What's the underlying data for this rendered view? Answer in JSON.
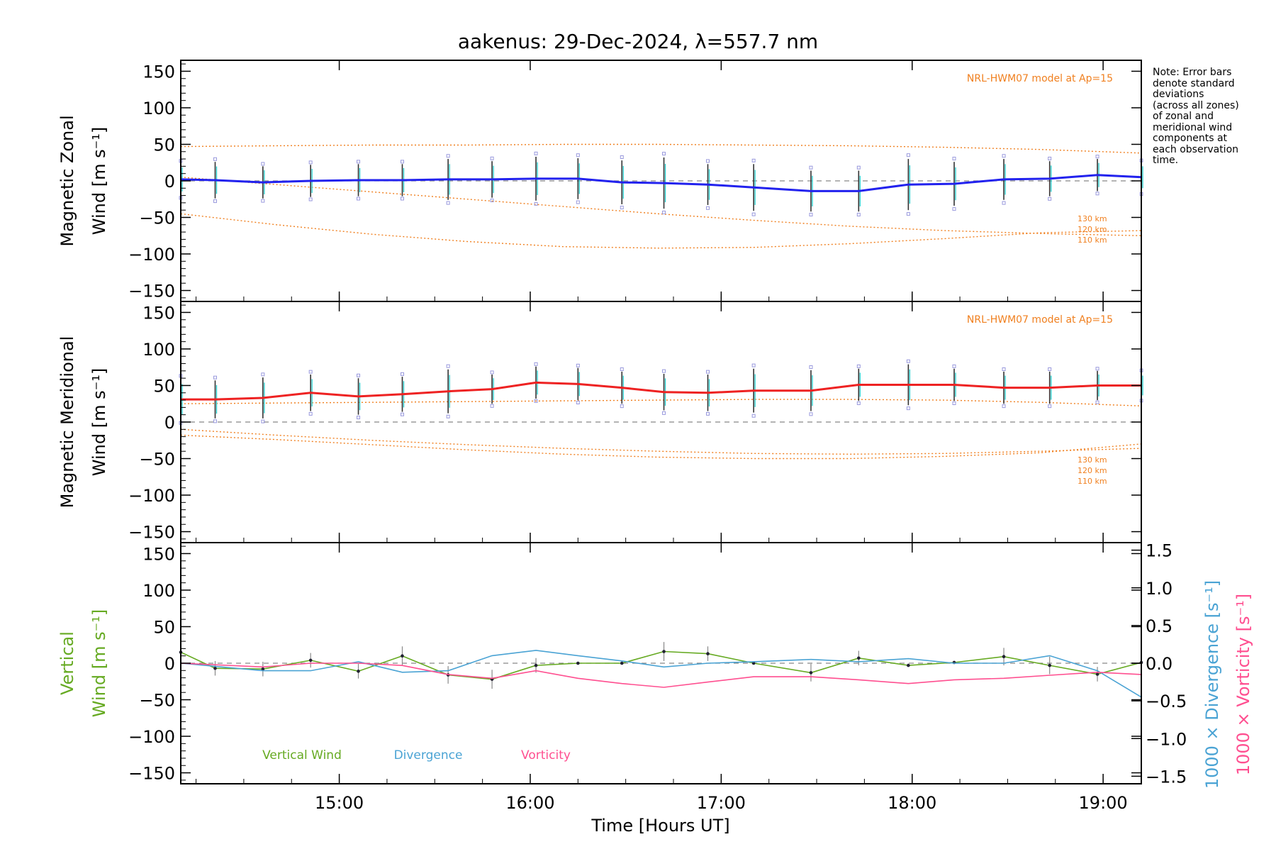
{
  "title": "aakenus: 29-Dec-2024, λ=557.7 nm",
  "note_lines": [
    "Note: Error bars",
    "denote standard",
    "deviations",
    "(across all zones)",
    "of zonal and",
    "meridional wind",
    "components at",
    "each observation",
    "time."
  ],
  "colors": {
    "zonal": "#2222ee",
    "meridional": "#ee2222",
    "model": "#f08020",
    "vertical": "#66aa22",
    "divergence": "#4aa3d4",
    "vorticity": "#ff4f90",
    "zone_markers": "#9999dd"
  },
  "chart_data": [
    {
      "type": "line",
      "panel": "zonal",
      "ylabel_line1": "Magnetic Zonal",
      "ylabel_line2": "Wind [m s⁻¹]",
      "ylim": [
        -165,
        165
      ],
      "yticks": [
        -150,
        -100,
        -50,
        0,
        50,
        100,
        150
      ],
      "ytick_labels": [
        "−150",
        "−100",
        "−50",
        "0",
        "50",
        "100",
        "150"
      ],
      "model_label": "NRL-HWM07 model at Ap=15",
      "model_altitude_labels": [
        "130 km",
        "120 km",
        "110 km"
      ],
      "series": [
        {
          "name": "Magnetic Zonal Wind",
          "x": [
            14.17,
            14.35,
            14.6,
            14.85,
            15.1,
            15.33,
            15.57,
            15.8,
            16.03,
            16.25,
            16.48,
            16.7,
            16.93,
            17.17,
            17.47,
            17.72,
            17.98,
            18.22,
            18.48,
            18.72,
            18.97,
            19.2
          ],
          "y": [
            2,
            1,
            -2,
            0,
            1,
            1,
            2,
            2,
            3,
            3,
            -2,
            -3,
            -5,
            -9,
            -14,
            -14,
            -5,
            -4,
            2,
            3,
            8,
            5
          ],
          "err": [
            22,
            25,
            22,
            22,
            22,
            22,
            28,
            25,
            30,
            28,
            30,
            35,
            28,
            32,
            28,
            28,
            35,
            30,
            28,
            24,
            22,
            20
          ]
        }
      ],
      "model_curves": [
        {
          "name": "130 km",
          "x": [
            14.17,
            14.67,
            15.17,
            15.67,
            16.17,
            16.67,
            17.17,
            17.67,
            18.17,
            18.67,
            19.2
          ],
          "y": [
            47,
            48,
            49,
            49,
            50,
            50,
            49,
            48,
            46,
            43,
            38
          ]
        },
        {
          "name": "120 km",
          "x": [
            14.17,
            14.67,
            15.17,
            15.67,
            16.17,
            16.67,
            17.17,
            17.67,
            18.17,
            18.67,
            19.2
          ],
          "y": [
            5,
            -5,
            -15,
            -25,
            -35,
            -45,
            -54,
            -62,
            -68,
            -72,
            -75
          ]
        },
        {
          "name": "110 km",
          "x": [
            14.17,
            14.67,
            15.17,
            15.67,
            16.17,
            16.67,
            17.17,
            17.67,
            18.17,
            18.67,
            19.2
          ],
          "y": [
            -45,
            -60,
            -73,
            -83,
            -90,
            -92,
            -91,
            -86,
            -79,
            -71,
            -68
          ]
        }
      ]
    },
    {
      "type": "line",
      "panel": "meridional",
      "ylabel_line1": "Magnetic Meridional",
      "ylabel_line2": "Wind [m s⁻¹]",
      "ylim": [
        -165,
        165
      ],
      "yticks": [
        -150,
        -100,
        -50,
        0,
        50,
        100,
        150
      ],
      "ytick_labels": [
        "−150",
        "−100",
        "−50",
        "0",
        "50",
        "100",
        "150"
      ],
      "model_label": "NRL-HWM07 model at Ap=15",
      "model_altitude_labels": [
        "130 km",
        "120 km",
        "110 km"
      ],
      "series": [
        {
          "name": "Magnetic Meridional Wind",
          "x": [
            14.17,
            14.35,
            14.6,
            14.85,
            15.1,
            15.33,
            15.57,
            15.8,
            16.03,
            16.25,
            16.48,
            16.7,
            16.93,
            17.17,
            17.47,
            17.72,
            17.98,
            18.22,
            18.48,
            18.72,
            18.97,
            19.2
          ],
          "y": [
            31,
            31,
            33,
            40,
            35,
            38,
            42,
            45,
            54,
            52,
            47,
            41,
            40,
            43,
            43,
            51,
            51,
            51,
            47,
            47,
            50,
            50
          ],
          "err": [
            28,
            26,
            28,
            25,
            25,
            24,
            30,
            20,
            22,
            22,
            22,
            25,
            25,
            30,
            28,
            22,
            28,
            22,
            22,
            22,
            20,
            18
          ]
        }
      ],
      "model_curves": [
        {
          "name": "130 km",
          "x": [
            14.17,
            14.67,
            15.17,
            15.67,
            16.17,
            16.67,
            17.17,
            17.67,
            18.17,
            18.67,
            19.2
          ],
          "y": [
            25,
            26,
            27,
            28,
            29,
            30,
            31,
            31,
            30,
            27,
            22
          ]
        },
        {
          "name": "120 km",
          "x": [
            14.17,
            14.67,
            15.17,
            15.67,
            16.17,
            16.67,
            17.17,
            17.67,
            18.17,
            18.67,
            19.2
          ],
          "y": [
            -10,
            -18,
            -25,
            -31,
            -36,
            -40,
            -43,
            -44,
            -43,
            -40,
            -36
          ]
        },
        {
          "name": "110 km",
          "x": [
            14.17,
            14.67,
            15.17,
            15.67,
            16.17,
            16.67,
            17.17,
            17.67,
            18.17,
            18.67,
            19.2
          ],
          "y": [
            -18,
            -24,
            -31,
            -38,
            -44,
            -48,
            -50,
            -50,
            -47,
            -42,
            -30
          ]
        }
      ]
    },
    {
      "type": "line",
      "panel": "vertical",
      "ylabel_line1": "Vertical",
      "ylabel_line2": "Wind [m s⁻¹]",
      "ylim": [
        -165,
        165
      ],
      "yticks": [
        -150,
        -100,
        -50,
        0,
        50,
        100,
        150
      ],
      "ytick_labels": [
        "−150",
        "−100",
        "−50",
        "0",
        "50",
        "100",
        "150"
      ],
      "y2label_divergence": "1000 × Divergence [s⁻¹]",
      "y2label_vorticity": "1000 × Vorticity [s⁻¹]",
      "y2lim": [
        -1.6,
        1.6
      ],
      "y2ticks": [
        -1.5,
        -1.0,
        -0.5,
        0.0,
        0.5,
        1.0,
        1.5
      ],
      "y2tick_labels": [
        "−1.5",
        "−1.0",
        "−0.5",
        "0.0",
        "0.5",
        "1.0",
        "1.5"
      ],
      "legend": [
        "Vertical Wind",
        "Divergence",
        "Vorticity"
      ],
      "series": [
        {
          "name": "Vertical Wind",
          "x": [
            14.17,
            14.35,
            14.6,
            14.85,
            15.1,
            15.33,
            15.57,
            15.8,
            16.03,
            16.25,
            16.48,
            16.7,
            16.93,
            17.17,
            17.47,
            17.72,
            17.98,
            18.22,
            18.48,
            18.72,
            18.97,
            19.2
          ],
          "y": [
            15,
            -7,
            -8,
            4,
            -11,
            10,
            -16,
            -22,
            -3,
            0,
            0,
            16,
            13,
            0,
            -13,
            7,
            -3,
            1,
            9,
            -3,
            -15,
            1
          ],
          "err": [
            0,
            10,
            10,
            10,
            10,
            13,
            12,
            13,
            10,
            0,
            0,
            13,
            10,
            0,
            12,
            10,
            0,
            0,
            12,
            12,
            10,
            0
          ]
        },
        {
          "name": "Divergence",
          "axis": "right",
          "x": [
            14.17,
            14.6,
            14.85,
            15.1,
            15.33,
            15.57,
            15.8,
            16.03,
            16.25,
            16.48,
            16.7,
            16.93,
            17.17,
            17.47,
            17.72,
            17.98,
            18.22,
            18.48,
            18.72,
            18.97,
            19.2
          ],
          "y": [
            0.0,
            -0.1,
            -0.1,
            0.02,
            -0.12,
            -0.1,
            0.1,
            0.17,
            0.1,
            0.03,
            -0.05,
            0.0,
            0.02,
            0.05,
            0.02,
            0.06,
            0.0,
            0.0,
            0.1,
            -0.1,
            -0.45
          ]
        },
        {
          "name": "Vorticity",
          "axis": "right",
          "x": [
            14.17,
            14.6,
            14.85,
            15.1,
            15.33,
            15.57,
            15.8,
            16.03,
            16.25,
            16.48,
            16.7,
            16.93,
            17.17,
            17.47,
            17.72,
            17.98,
            18.22,
            18.48,
            18.72,
            18.97,
            19.2
          ],
          "y": [
            0.0,
            -0.05,
            0.0,
            0.0,
            -0.03,
            -0.15,
            -0.2,
            -0.1,
            -0.2,
            -0.27,
            -0.32,
            -0.25,
            -0.18,
            -0.18,
            -0.22,
            -0.27,
            -0.22,
            -0.2,
            -0.16,
            -0.12,
            -0.15
          ]
        }
      ]
    }
  ],
  "x_axis": {
    "xlim": [
      14.17,
      19.2
    ],
    "ticks": [
      15,
      16,
      17,
      18,
      19
    ],
    "tick_labels": [
      "15:00",
      "16:00",
      "17:00",
      "18:00",
      "19:00"
    ],
    "label": "Time [Hours UT]"
  }
}
